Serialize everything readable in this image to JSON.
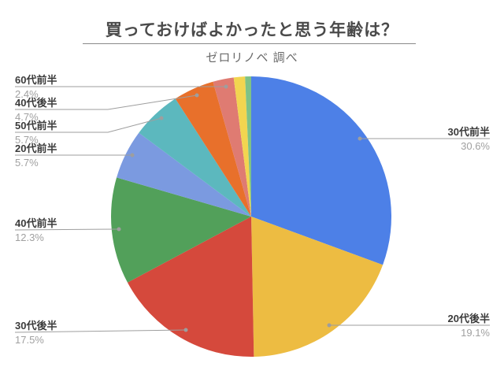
{
  "header": {
    "title": "買っておけばよかったと思う年齢は？",
    "subtitle": "ゼロリノベ 調べ"
  },
  "chart_data": {
    "type": "pie",
    "title": "買っておけばよかったと思う年齢は？",
    "subtitle": "ゼロリノベ 調べ",
    "start_angle_deg": 0,
    "direction": "clockwise",
    "legend_position": "callout-labels",
    "grid": false,
    "slices": [
      {
        "id": "30s-first-half",
        "label": "30代前半",
        "value": 30.6,
        "pct_text": "30.6%",
        "color": "#4d80e7"
      },
      {
        "id": "20s-second-half",
        "label": "20代後半",
        "value": 19.1,
        "pct_text": "19.1%",
        "color": "#edbc42"
      },
      {
        "id": "30s-second-half",
        "label": "30代後半",
        "value": 17.5,
        "pct_text": "17.5%",
        "color": "#d5493c"
      },
      {
        "id": "40s-first-half",
        "label": "40代前半",
        "value": 12.3,
        "pct_text": "12.3%",
        "color": "#52a05a"
      },
      {
        "id": "20s-first-half",
        "label": "20代前半",
        "value": 5.7,
        "pct_text": "5.7%",
        "color": "#7b9ae0"
      },
      {
        "id": "50s-first-half",
        "label": "50代前半",
        "value": 5.7,
        "pct_text": "5.7%",
        "color": "#5cb8be"
      },
      {
        "id": "40s-second-half",
        "label": "40代後半",
        "value": 4.7,
        "pct_text": "4.7%",
        "color": "#e8702b"
      },
      {
        "id": "60s-first-half",
        "label": "60代前半",
        "value": 2.4,
        "pct_text": "2.4%",
        "color": "#df7b72"
      },
      {
        "id": "unlabeled-small-1",
        "label": "",
        "value": 1.3,
        "pct_text": "",
        "color": "#f2d550"
      },
      {
        "id": "unlabeled-small-2",
        "label": "",
        "value": 0.7,
        "pct_text": "",
        "color": "#7ec287"
      }
    ],
    "colors": {
      "title": "#4a4a4a",
      "subtitle": "#6a6a6a",
      "label": "#3b3b3b",
      "percent": "#a0a0a0",
      "leader_line": "#9e9e9e",
      "background": "#ffffff"
    }
  }
}
